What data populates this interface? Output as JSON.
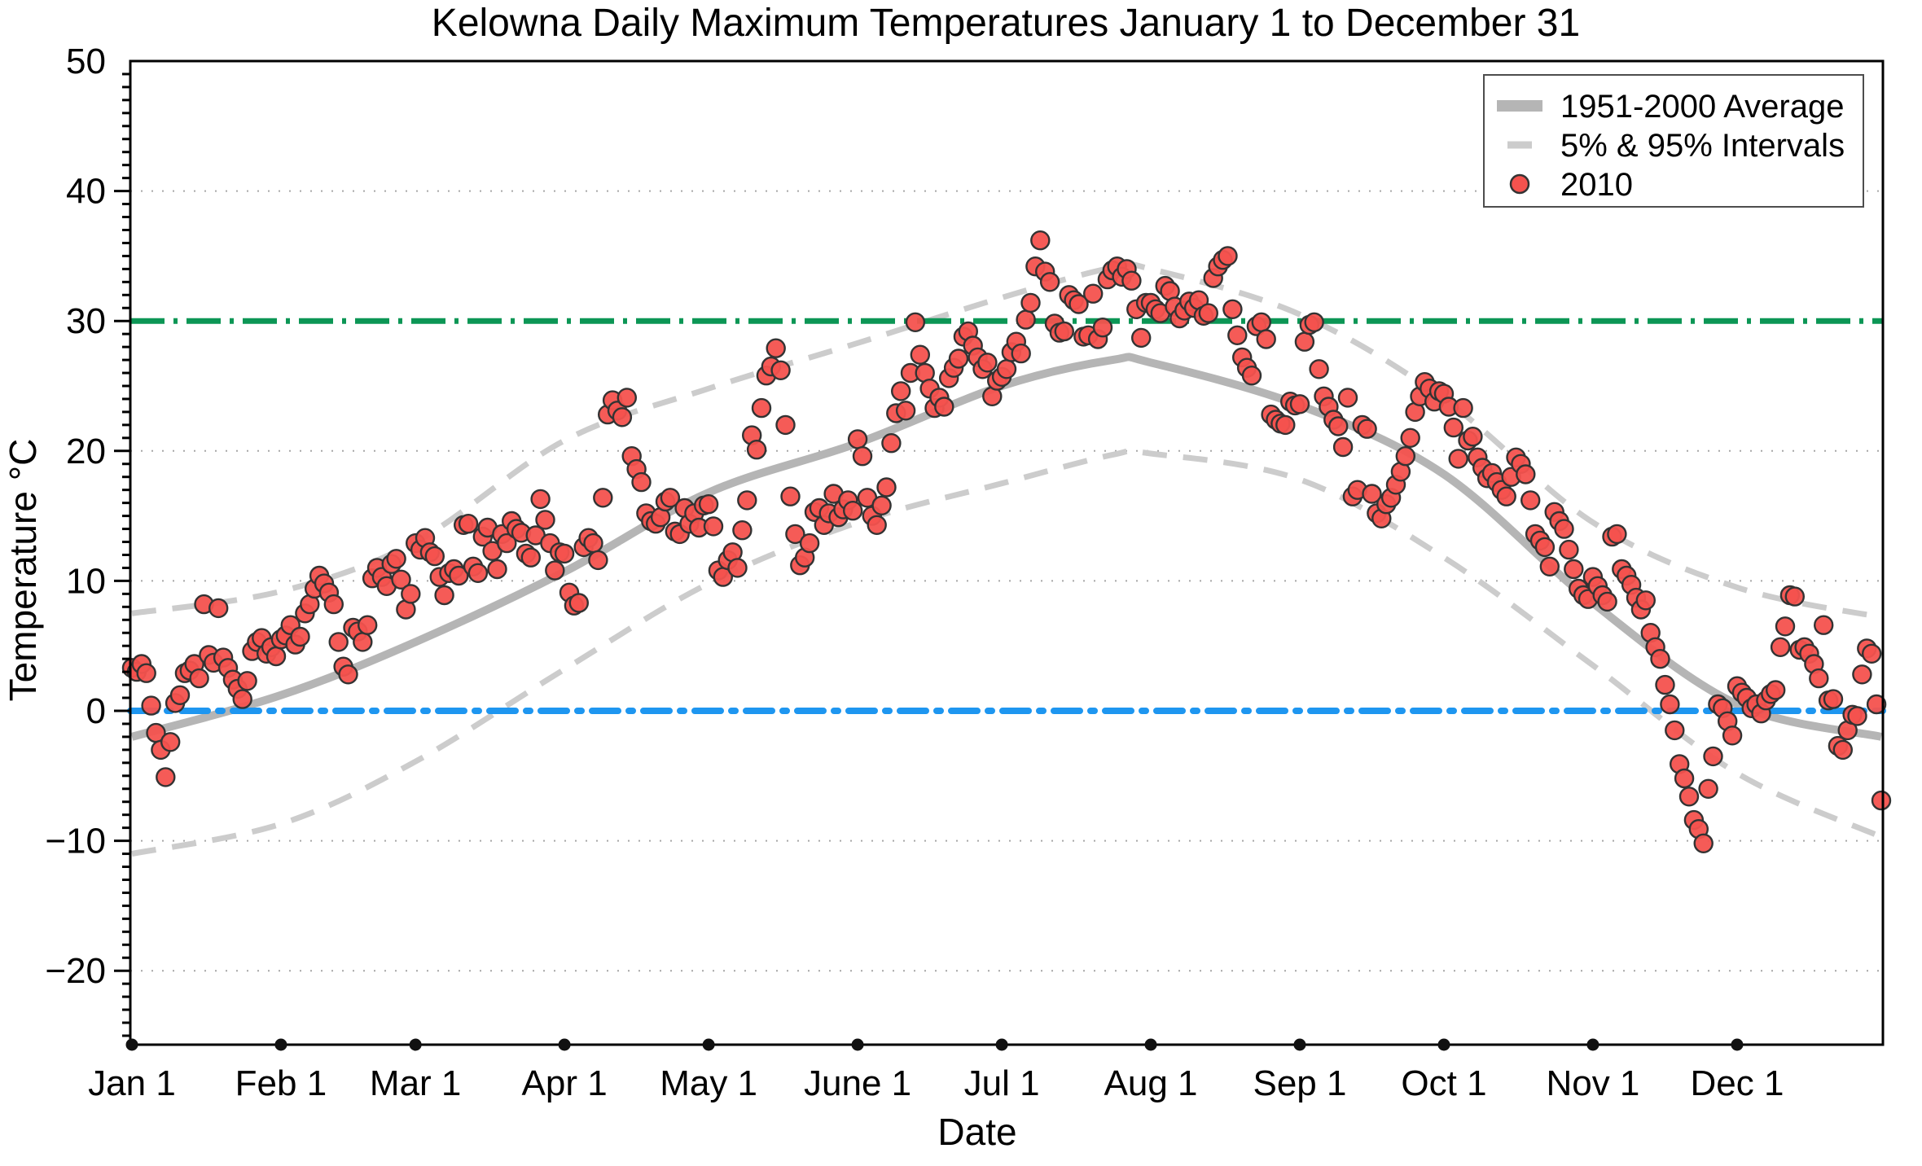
{
  "chart_data": {
    "type": "scatter",
    "title": "Kelowna Daily Maximum Temperatures January 1 to December 31",
    "xlabel": "Date",
    "ylabel": "Temperature °C",
    "ylim": [
      -25.7,
      50
    ],
    "y_major_ticks": [
      50,
      40,
      30,
      20,
      10,
      0,
      -10,
      -20
    ],
    "y_tick_labels": [
      "50",
      "40",
      "30",
      "20",
      "10",
      "0",
      "−10",
      "−20"
    ],
    "y_minor_tick_step": 1,
    "grid_y_values": [
      40,
      20,
      10,
      -10,
      -20
    ],
    "x_tick_labels": [
      "Jan 1",
      "Feb 1",
      "Mar 1",
      "Apr 1",
      "May 1",
      "June 1",
      "Jul 1",
      "Aug 1",
      "Sep 1",
      "Oct 1",
      "Nov 1",
      "Dec 1"
    ],
    "x_tick_days": [
      1,
      32,
      60,
      91,
      121,
      152,
      182,
      213,
      244,
      274,
      305,
      335
    ],
    "x_range_days": [
      1,
      365
    ],
    "reference_lines": [
      {
        "name": "30 degree threshold",
        "value": 30,
        "color": "#0c9655",
        "style": "dash-dot"
      },
      {
        "name": "0 degree freezing line",
        "value": 0,
        "color": "#1e96f0",
        "style": "dash-dot"
      }
    ],
    "series": [
      {
        "name": "1951-2000 Average",
        "type": "line",
        "color": "#b5b5b5",
        "anchor_days": [
          1,
          32,
          60,
          91,
          121,
          152,
          182,
          205,
          213,
          244,
          274,
          305,
          335,
          365
        ],
        "values": [
          -2.0,
          1.2,
          5.3,
          10.7,
          16.8,
          20.6,
          25.0,
          27.0,
          26.8,
          23.5,
          18.2,
          8.3,
          0.5,
          -2.0
        ]
      },
      {
        "name": "5% & 95% Intervals",
        "type": "dashed-band",
        "color": "#cccccc",
        "anchor_days": [
          1,
          32,
          60,
          91,
          121,
          152,
          182,
          205,
          213,
          244,
          274,
          305,
          335,
          365
        ],
        "upper_values": [
          7.5,
          9.2,
          13.0,
          20.8,
          24.8,
          28.3,
          31.8,
          34.1,
          34.0,
          30.5,
          24.0,
          14.5,
          9.5,
          7.2
        ],
        "lower_values": [
          -11.0,
          -8.7,
          -3.9,
          3.2,
          9.8,
          14.5,
          17.5,
          19.7,
          19.8,
          17.8,
          11.8,
          3.5,
          -4.8,
          -9.7
        ]
      },
      {
        "name": "2010",
        "type": "scatter",
        "color": "#f4524e",
        "marker_edge_color": "#333333",
        "daily_max_c": [
          3.3,
          3.0,
          3.6,
          2.9,
          0.4,
          -1.7,
          -3.0,
          -5.1,
          -2.4,
          0.6,
          1.2,
          2.9,
          3.1,
          3.6,
          2.5,
          8.2,
          4.3,
          3.7,
          7.9,
          4.1,
          3.3,
          2.4,
          1.7,
          0.9,
          2.3,
          4.6,
          5.3,
          5.6,
          4.4,
          4.9,
          4.2,
          5.5,
          5.8,
          6.6,
          5.1,
          5.7,
          7.5,
          8.2,
          9.4,
          10.4,
          9.8,
          9.1,
          8.2,
          5.3,
          3.4,
          2.8,
          6.4,
          6.1,
          5.3,
          6.6,
          10.2,
          11.0,
          10.3,
          9.6,
          11.3,
          11.7,
          10.1,
          7.8,
          9.0,
          12.9,
          12.4,
          13.3,
          12.2,
          11.9,
          10.3,
          8.9,
          10.6,
          10.9,
          10.4,
          14.3,
          14.4,
          11.1,
          10.6,
          13.4,
          14.1,
          12.3,
          10.9,
          13.6,
          12.9,
          14.6,
          14.0,
          13.7,
          12.1,
          11.8,
          13.5,
          16.3,
          14.7,
          12.9,
          10.8,
          12.2,
          12.1,
          9.1,
          8.1,
          8.3,
          12.6,
          13.3,
          12.9,
          11.6,
          16.4,
          22.8,
          23.9,
          23.1,
          22.6,
          24.1,
          19.6,
          18.6,
          17.6,
          15.2,
          14.6,
          14.4,
          14.9,
          16.1,
          16.4,
          13.8,
          13.6,
          15.6,
          14.4,
          15.2,
          14.1,
          15.8,
          15.9,
          14.2,
          10.8,
          10.3,
          11.6,
          12.2,
          11.0,
          13.9,
          16.2,
          21.2,
          20.1,
          23.3,
          25.8,
          26.5,
          27.9,
          26.2,
          22.0,
          16.5,
          13.6,
          11.2,
          11.8,
          12.9,
          15.3,
          15.6,
          14.3,
          15.2,
          16.7,
          14.9,
          15.5,
          16.2,
          15.4,
          20.9,
          19.6,
          16.4,
          15.0,
          14.3,
          15.8,
          17.2,
          20.6,
          22.9,
          24.6,
          23.1,
          26.0,
          29.9,
          27.4,
          26.0,
          24.8,
          23.3,
          24.1,
          23.4,
          25.6,
          26.4,
          27.1,
          28.8,
          29.2,
          28.1,
          27.2,
          26.3,
          26.8,
          24.2,
          25.4,
          25.7,
          26.3,
          27.6,
          28.4,
          27.5,
          30.1,
          31.4,
          34.2,
          36.2,
          33.8,
          33.0,
          29.8,
          29.1,
          29.2,
          32.0,
          31.6,
          31.3,
          28.8,
          28.9,
          32.1,
          28.6,
          29.5,
          33.2,
          33.9,
          34.2,
          33.4,
          34.0,
          33.1,
          30.9,
          28.7,
          31.4,
          31.4,
          30.9,
          30.6,
          32.7,
          32.3,
          31.1,
          30.2,
          30.8,
          31.5,
          31.0,
          31.6,
          30.4,
          30.6,
          33.3,
          34.2,
          34.7,
          35.0,
          30.9,
          28.9,
          27.2,
          26.4,
          25.8,
          29.6,
          29.9,
          28.6,
          22.8,
          22.4,
          22.1,
          22.0,
          23.8,
          23.5,
          23.6,
          28.4,
          29.7,
          29.9,
          26.3,
          24.2,
          23.4,
          22.4,
          21.9,
          20.3,
          24.1,
          16.5,
          17.0,
          22.0,
          21.7,
          16.7,
          15.2,
          14.8,
          15.9,
          16.4,
          17.4,
          18.4,
          19.6,
          21.0,
          23.0,
          24.2,
          25.3,
          24.8,
          23.8,
          24.6,
          24.4,
          23.4,
          21.8,
          19.4,
          23.3,
          20.8,
          21.1,
          19.5,
          18.7,
          17.9,
          18.3,
          17.6,
          17.0,
          16.5,
          18.0,
          19.5,
          19.0,
          18.2,
          16.2,
          13.6,
          13.1,
          12.6,
          11.1,
          15.3,
          14.6,
          14.0,
          12.4,
          10.9,
          9.4,
          8.9,
          8.6,
          10.3,
          9.6,
          8.9,
          8.4,
          13.4,
          13.6,
          10.9,
          10.4,
          9.7,
          8.7,
          7.8,
          8.5,
          6.0,
          4.9,
          4.0,
          2.0,
          0.5,
          -1.5,
          -4.1,
          -5.2,
          -6.6,
          -8.4,
          -9.1,
          -10.2,
          -6.0,
          -3.5,
          0.5,
          0.2,
          -0.8,
          -1.9,
          1.9,
          1.4,
          1.0,
          0.2,
          0.5,
          -0.2,
          0.8,
          1.3,
          1.6,
          4.9,
          6.5,
          8.9,
          8.8,
          4.7,
          4.9,
          4.4,
          3.6,
          2.5,
          6.6,
          0.8,
          0.9,
          -2.7,
          -3.0,
          -1.5,
          -0.3,
          -0.4,
          2.8,
          4.8,
          4.4,
          0.5,
          -6.9
        ]
      }
    ],
    "legend_position": "upper right",
    "grid": "dotted horizontal"
  }
}
